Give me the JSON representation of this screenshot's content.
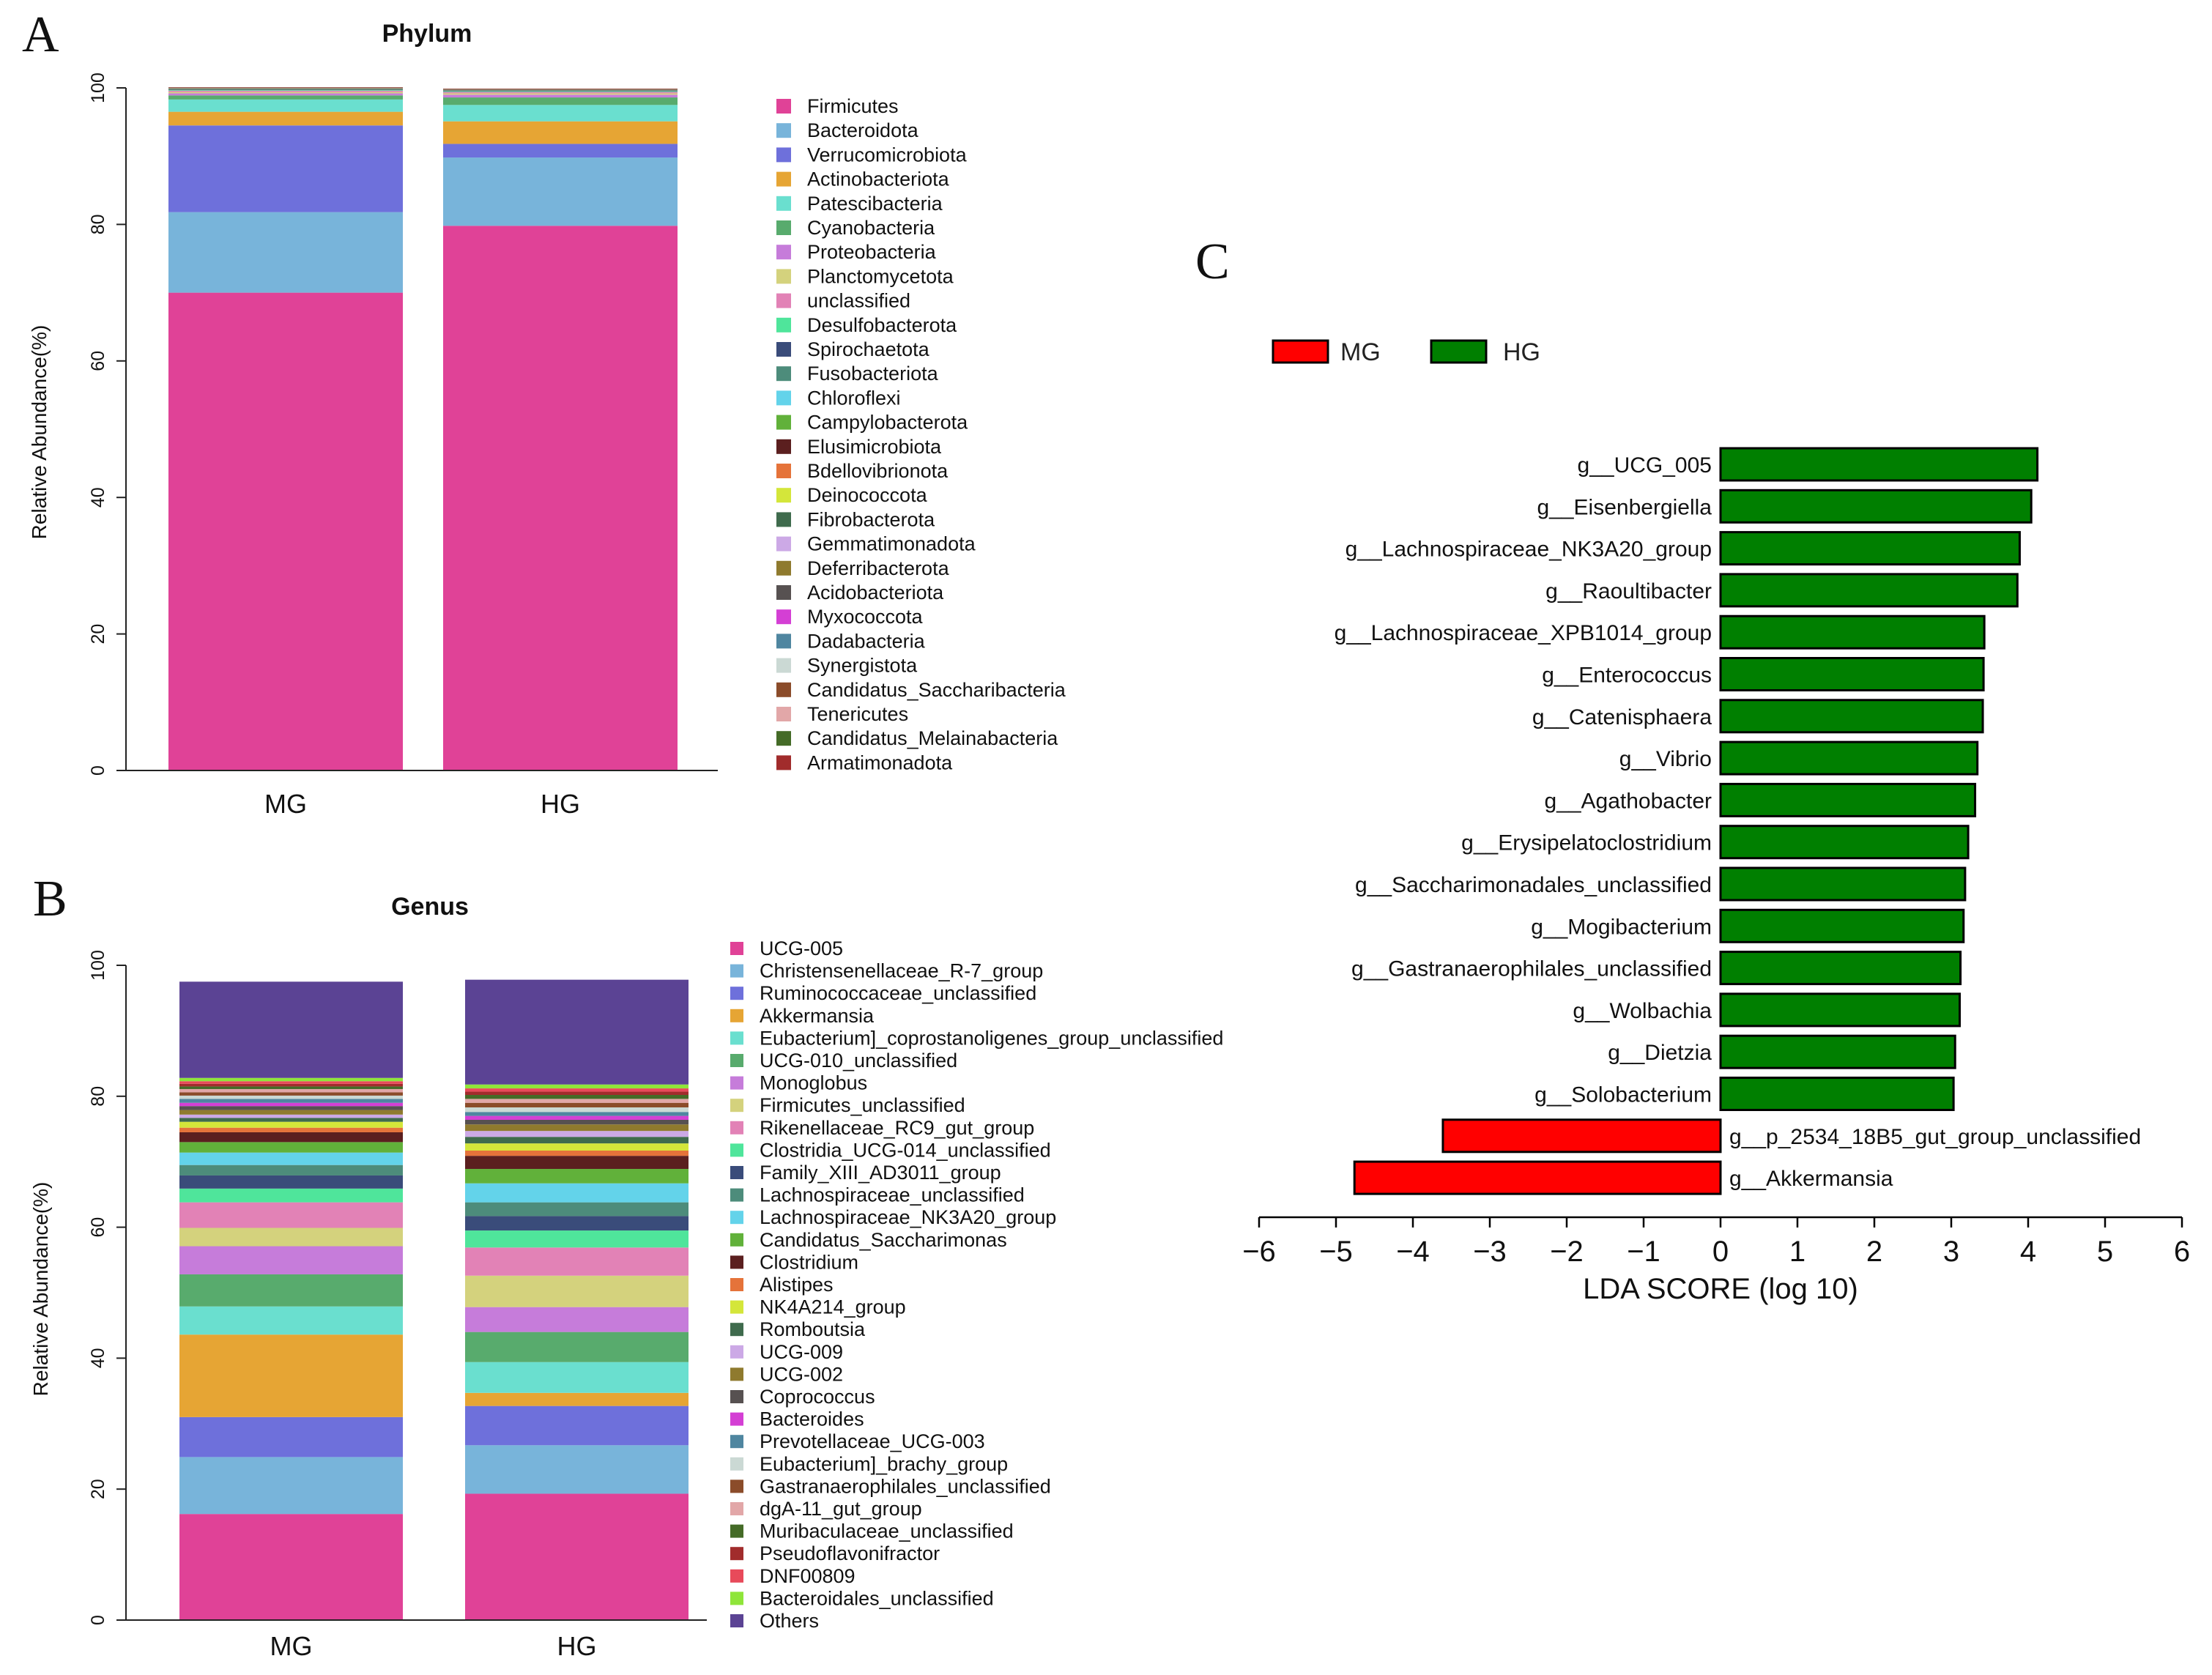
{
  "colors": {
    "pink": "#E04297",
    "lightblue": "#78B4DA",
    "slate": "#6E70DB",
    "orange": "#E6A534",
    "turq": "#6ADFCF",
    "green": "#58AB6D",
    "violet": "#C67CDA",
    "khaki": "#D4D27D",
    "rose": "#E282B6",
    "mint": "#4FE59B",
    "navy": "#3A4C7A",
    "teal": "#4D8C7B",
    "cyan": "#63D3EA",
    "lime": "#61B13A",
    "darkbrown": "#5B1F1F",
    "orangered": "#E5733A",
    "yellow": "#D4E63A",
    "darkgreen": "#3F6B4D",
    "lavender": "#CCA9E6",
    "olive": "#8F7A2E",
    "dgray": "#575151",
    "magenta": "#D43FD4",
    "steel": "#4F86A0",
    "pale": "#CBD9D4",
    "brown": "#8B4C2A",
    "blush": "#E2A7A8",
    "fgreen": "#446B27",
    "darkred": "#A12C2C",
    "red": "#E84A5A",
    "brightgreen": "#8FE53A",
    "purple": "#5B4394",
    "mg_red": "#FF0000",
    "hg_green": "#007F00"
  },
  "chart_data": [
    {
      "panel": "A",
      "type": "bar",
      "stacked": true,
      "title": "Phylum",
      "ylabel": "Relative Abundance(%)",
      "ylim": [
        0,
        100
      ],
      "yticks": [
        "0",
        "20",
        "40",
        "60",
        "80",
        "100"
      ],
      "categories": [
        "MG",
        "HG"
      ],
      "series": [
        {
          "name": "Firmicutes",
          "color": "#E04297",
          "values": [
            70.0,
            79.8
          ]
        },
        {
          "name": "Bacteroidota",
          "color": "#78B4DA",
          "values": [
            11.8,
            10.0
          ]
        },
        {
          "name": "Verrucomicrobiota",
          "color": "#6E70DB",
          "values": [
            12.7,
            2.0
          ]
        },
        {
          "name": "Actinobacteriota",
          "color": "#E6A534",
          "values": [
            2.0,
            3.3
          ]
        },
        {
          "name": "Patescibacteria",
          "color": "#6ADFCF",
          "values": [
            1.8,
            2.4
          ]
        },
        {
          "name": "Cyanobacteria",
          "color": "#58AB6D",
          "values": [
            0.6,
            1.1
          ]
        },
        {
          "name": "Proteobacteria",
          "color": "#C67CDA",
          "values": [
            0.3,
            0.4
          ]
        },
        {
          "name": "Planctomycetota",
          "color": "#D4D27D",
          "values": [
            0.2,
            0.2
          ]
        },
        {
          "name": "unclassified",
          "color": "#E282B6",
          "values": [
            0.2,
            0.2
          ]
        },
        {
          "name": "Desulfobacterota",
          "color": "#4FE59B",
          "values": [
            0.1,
            0.1
          ]
        },
        {
          "name": "Spirochaetota",
          "color": "#3A4C7A",
          "values": [
            0.05,
            0.05
          ]
        },
        {
          "name": "Fusobacteriota",
          "color": "#4D8C7B",
          "values": [
            0.05,
            0.05
          ]
        },
        {
          "name": "Chloroflexi",
          "color": "#63D3EA",
          "values": [
            0.05,
            0.05
          ]
        },
        {
          "name": "Campylobacterota",
          "color": "#61B13A",
          "values": [
            0.03,
            0.03
          ]
        },
        {
          "name": "Elusimicrobiota",
          "color": "#5B1F1F",
          "values": [
            0.03,
            0.03
          ]
        },
        {
          "name": "Bdellovibrionota",
          "color": "#E5733A",
          "values": [
            0.02,
            0.02
          ]
        },
        {
          "name": "Deinococcota",
          "color": "#D4E63A",
          "values": [
            0.02,
            0.02
          ]
        },
        {
          "name": "Fibrobacterota",
          "color": "#3F6B4D",
          "values": [
            0.02,
            0.02
          ]
        },
        {
          "name": "Gemmatimonadota",
          "color": "#CCA9E6",
          "values": [
            0.02,
            0.02
          ]
        },
        {
          "name": "Deferribacterota",
          "color": "#8F7A2E",
          "values": [
            0.01,
            0.01
          ]
        },
        {
          "name": "Acidobacteriota",
          "color": "#575151",
          "values": [
            0.01,
            0.01
          ]
        },
        {
          "name": "Myxococcota",
          "color": "#D43FD4",
          "values": [
            0.01,
            0.01
          ]
        },
        {
          "name": "Dadabacteria",
          "color": "#4F86A0",
          "values": [
            0.01,
            0.01
          ]
        },
        {
          "name": "Synergistota",
          "color": "#CBD9D4",
          "values": [
            0.01,
            0.01
          ]
        },
        {
          "name": "Candidatus_Saccharibacteria",
          "color": "#8B4C2A",
          "values": [
            0.01,
            0.01
          ]
        },
        {
          "name": "Tenericutes",
          "color": "#E2A7A8",
          "values": [
            0.01,
            0.01
          ]
        },
        {
          "name": "Candidatus_Melainabacteria",
          "color": "#446B27",
          "values": [
            0.01,
            0.01
          ]
        },
        {
          "name": "Armatimonadota",
          "color": "#A12C2C",
          "values": [
            0.01,
            0.01
          ]
        }
      ]
    },
    {
      "panel": "B",
      "type": "bar",
      "stacked": true,
      "title": "Genus",
      "ylabel": "Relative Abundance(%)",
      "ylim": [
        0,
        100
      ],
      "yticks": [
        "0",
        "20",
        "40",
        "60",
        "80",
        "100"
      ],
      "categories": [
        "MG",
        "HG"
      ],
      "series": [
        {
          "name": "UCG-005",
          "color": "#E04297",
          "values": [
            16.2,
            19.3
          ]
        },
        {
          "name": "Christensenellaceae_R-7_group",
          "color": "#78B4DA",
          "values": [
            8.7,
            7.4
          ]
        },
        {
          "name": "Ruminococcaceae_unclassified",
          "color": "#6E70DB",
          "values": [
            6.1,
            6.0
          ]
        },
        {
          "name": "Akkermansia",
          "color": "#E6A534",
          "values": [
            12.6,
            2.0
          ]
        },
        {
          "name": "Eubacterium]_coprostanoligenes_group_unclassified",
          "color": "#6ADFCF",
          "values": [
            4.3,
            4.7
          ]
        },
        {
          "name": "UCG-010_unclassified",
          "color": "#58AB6D",
          "values": [
            4.9,
            4.6
          ]
        },
        {
          "name": "Monoglobus",
          "color": "#C67CDA",
          "values": [
            4.3,
            3.8
          ]
        },
        {
          "name": "Firmicutes_unclassified",
          "color": "#D4D27D",
          "values": [
            2.8,
            4.8
          ]
        },
        {
          "name": "Rikenellaceae_RC9_gut_group",
          "color": "#E282B6",
          "values": [
            3.9,
            4.3
          ]
        },
        {
          "name": "Clostridia_UCG-014_unclassified",
          "color": "#4FE59B",
          "values": [
            2.1,
            2.6
          ]
        },
        {
          "name": "Family_XIII_AD3011_group",
          "color": "#3A4C7A",
          "values": [
            2.0,
            2.2
          ]
        },
        {
          "name": "Lachnospiraceae_unclassified",
          "color": "#4D8C7B",
          "values": [
            1.6,
            2.1
          ]
        },
        {
          "name": "Lachnospiraceae_NK3A20_group",
          "color": "#63D3EA",
          "values": [
            1.9,
            2.9
          ]
        },
        {
          "name": "Candidatus_Saccharimonas",
          "color": "#61B13A",
          "values": [
            1.6,
            2.2
          ]
        },
        {
          "name": "Clostridium",
          "color": "#5B1F1F",
          "values": [
            1.5,
            2.0
          ]
        },
        {
          "name": "Alistipes",
          "color": "#E5733A",
          "values": [
            0.7,
            0.8
          ]
        },
        {
          "name": "NK4A214_group",
          "color": "#D4E63A",
          "values": [
            0.9,
            1.1
          ]
        },
        {
          "name": "Romboutsia",
          "color": "#3F6B4D",
          "values": [
            0.6,
            1.0
          ]
        },
        {
          "name": "UCG-009",
          "color": "#CCA9E6",
          "values": [
            0.5,
            0.9
          ]
        },
        {
          "name": "UCG-002",
          "color": "#8F7A2E",
          "values": [
            0.7,
            1.0
          ]
        },
        {
          "name": "Coprococcus",
          "color": "#575151",
          "values": [
            0.6,
            0.7
          ]
        },
        {
          "name": "Bacteroides",
          "color": "#D43FD4",
          "values": [
            0.5,
            0.6
          ]
        },
        {
          "name": "Prevotellaceae_UCG-003",
          "color": "#4F86A0",
          "values": [
            0.6,
            0.6
          ]
        },
        {
          "name": "Eubacterium]_brachy_group",
          "color": "#CBD9D4",
          "values": [
            0.5,
            0.7
          ]
        },
        {
          "name": "Gastranaerophilales_unclassified",
          "color": "#8B4C2A",
          "values": [
            0.5,
            0.7
          ]
        },
        {
          "name": "dgA-11_gut_group",
          "color": "#E2A7A8",
          "values": [
            0.5,
            0.6
          ]
        },
        {
          "name": "Muribaculaceae_unclassified",
          "color": "#446B27",
          "values": [
            0.4,
            0.6
          ]
        },
        {
          "name": "Pseudoflavonifractor",
          "color": "#A12C2C",
          "values": [
            0.4,
            0.5
          ]
        },
        {
          "name": "DNF00809",
          "color": "#E84A5A",
          "values": [
            0.4,
            0.5
          ]
        },
        {
          "name": "Bacteroidales_unclassified",
          "color": "#8FE53A",
          "values": [
            0.5,
            0.6
          ]
        },
        {
          "name": "Others",
          "color": "#5B4394",
          "values": [
            14.7,
            16.0
          ]
        }
      ]
    },
    {
      "panel": "C",
      "type": "bar",
      "orientation": "horizontal",
      "xlabel": "LDA SCORE (log 10)",
      "xlim": [
        -6,
        6
      ],
      "xticks": [
        "−6",
        "−5",
        "−4",
        "−3",
        "−2",
        "−1",
        "0",
        "1",
        "2",
        "3",
        "4",
        "5",
        "6"
      ],
      "legend": [
        {
          "name": "MG",
          "color": "#FF0000"
        },
        {
          "name": "HG",
          "color": "#007F00"
        }
      ],
      "bars": [
        {
          "label": "g__UCG_005",
          "value": 4.12,
          "group": "HG"
        },
        {
          "label": "g__Eisenbergiella",
          "value": 4.04,
          "group": "HG"
        },
        {
          "label": "g__Lachnospiraceae_NK3A20_group",
          "value": 3.89,
          "group": "HG"
        },
        {
          "label": "g__Raoultibacter",
          "value": 3.86,
          "group": "HG"
        },
        {
          "label": "g__Lachnospiraceae_XPB1014_group",
          "value": 3.43,
          "group": "HG"
        },
        {
          "label": "g__Enterococcus",
          "value": 3.42,
          "group": "HG"
        },
        {
          "label": "g__Catenisphaera",
          "value": 3.41,
          "group": "HG"
        },
        {
          "label": "g__Vibrio",
          "value": 3.34,
          "group": "HG"
        },
        {
          "label": "g__Agathobacter",
          "value": 3.31,
          "group": "HG"
        },
        {
          "label": "g__Erysipelatoclostridium",
          "value": 3.22,
          "group": "HG"
        },
        {
          "label": "g__Saccharimonadales_unclassified",
          "value": 3.18,
          "group": "HG"
        },
        {
          "label": "g__Mogibacterium",
          "value": 3.16,
          "group": "HG"
        },
        {
          "label": "g__Gastranaerophilales_unclassified",
          "value": 3.12,
          "group": "HG"
        },
        {
          "label": "g__Wolbachia",
          "value": 3.11,
          "group": "HG"
        },
        {
          "label": "g__Dietzia",
          "value": 3.05,
          "group": "HG"
        },
        {
          "label": "g__Solobacterium",
          "value": 3.03,
          "group": "HG"
        },
        {
          "label": "g__p_2534_18B5_gut_group_unclassified",
          "value": -3.61,
          "group": "MG"
        },
        {
          "label": "g__Akkermansia",
          "value": -4.76,
          "group": "MG"
        }
      ]
    }
  ]
}
